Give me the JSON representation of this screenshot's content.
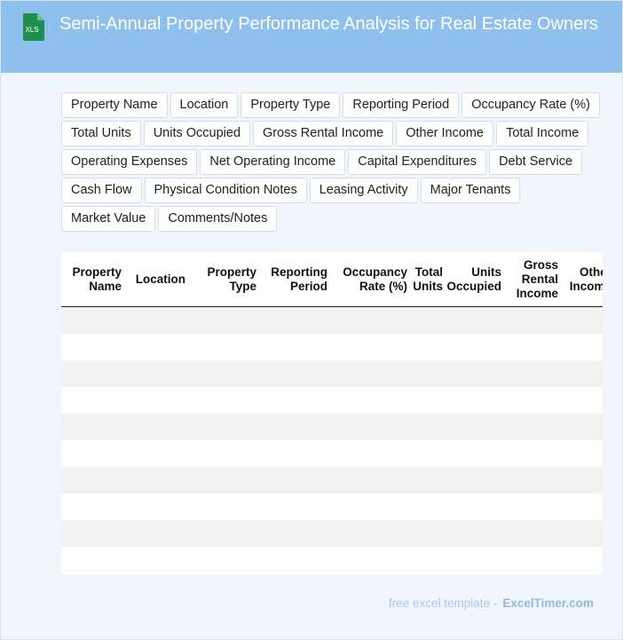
{
  "header": {
    "title": "Semi-Annual Property Performance Analysis for Real Estate Owners",
    "icon_label": "XLS",
    "icon": "xls-file-icon",
    "icon_color": "#1f8f4e",
    "bg_color": "#8fbfec"
  },
  "chips": [
    "Property Name",
    "Location",
    "Property Type",
    "Reporting Period",
    "Occupancy Rate (%)",
    "Total Units",
    "Units Occupied",
    "Gross Rental Income",
    "Other Income",
    "Total Income",
    "Operating Expenses",
    "Net Operating Income",
    "Capital Expenditures",
    "Debt Service",
    "Cash Flow",
    "Physical Condition Notes",
    "Leasing Activity",
    "Major Tenants",
    "Market Value",
    "Comments/Notes"
  ],
  "table": {
    "columns": [
      "Property\nName",
      "Location",
      "Property\nType",
      "Reporting\nPeriod",
      "Occupancy\nRate (%)",
      "Total\nUnits",
      "Units\nOccupied",
      "Gross\nRental\nIncome",
      "Other\nIncome"
    ],
    "row_count": 10
  },
  "footer": {
    "prefix": "free excel template -",
    "brand": "ExcelTimer.com"
  }
}
